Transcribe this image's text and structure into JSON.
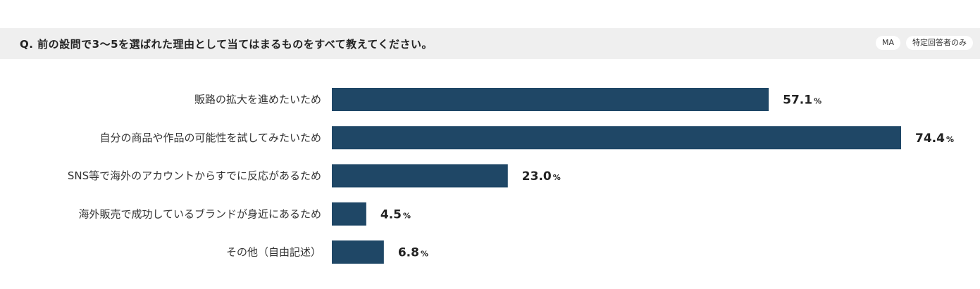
{
  "header": {
    "question": "Q. 前の設問で3〜5を選ばれた理由として当てはまるものをすべて教えてください。",
    "badges": [
      "MA",
      "特定回答者のみ"
    ]
  },
  "colors": {
    "bar": "#1f4766",
    "header_bg": "#efefef"
  },
  "chart_data": {
    "type": "bar",
    "orientation": "horizontal",
    "title": "",
    "xlabel": "",
    "ylabel": "",
    "unit": "%",
    "xlim": [
      0,
      80
    ],
    "grid": false,
    "categories": [
      "販路の拡大を進めたいため",
      "自分の商品や作品の可能性を試してみたいため",
      "SNS等で海外のアカウントからすでに反応があるため",
      "海外販売で成功しているブランドが身近にあるため",
      "その他（自由記述）"
    ],
    "values": [
      57.1,
      74.4,
      23.0,
      4.5,
      6.8
    ],
    "value_labels": [
      "57.1",
      "74.4",
      "23.0",
      "4.5",
      "6.8"
    ]
  }
}
